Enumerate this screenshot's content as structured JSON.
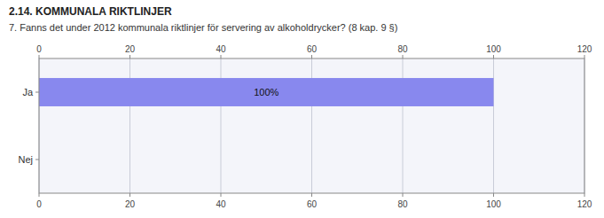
{
  "chart_data": {
    "type": "bar",
    "orientation": "horizontal",
    "title": "2.14. KOMMUNALA RIKTLINJER",
    "subtitle": "7. Fanns det under 2012 kommunala riktlinjer för servering av alkoholdrycker? (8 kap. 9 §)",
    "categories": [
      "Ja",
      "Nej"
    ],
    "values": [
      100,
      0
    ],
    "value_labels": [
      "100%",
      null
    ],
    "data_labels": true,
    "color": "#8888ee",
    "xlim": [
      0,
      120
    ],
    "xticks": [
      0,
      20,
      40,
      60,
      80,
      100,
      120
    ],
    "grid": true
  }
}
